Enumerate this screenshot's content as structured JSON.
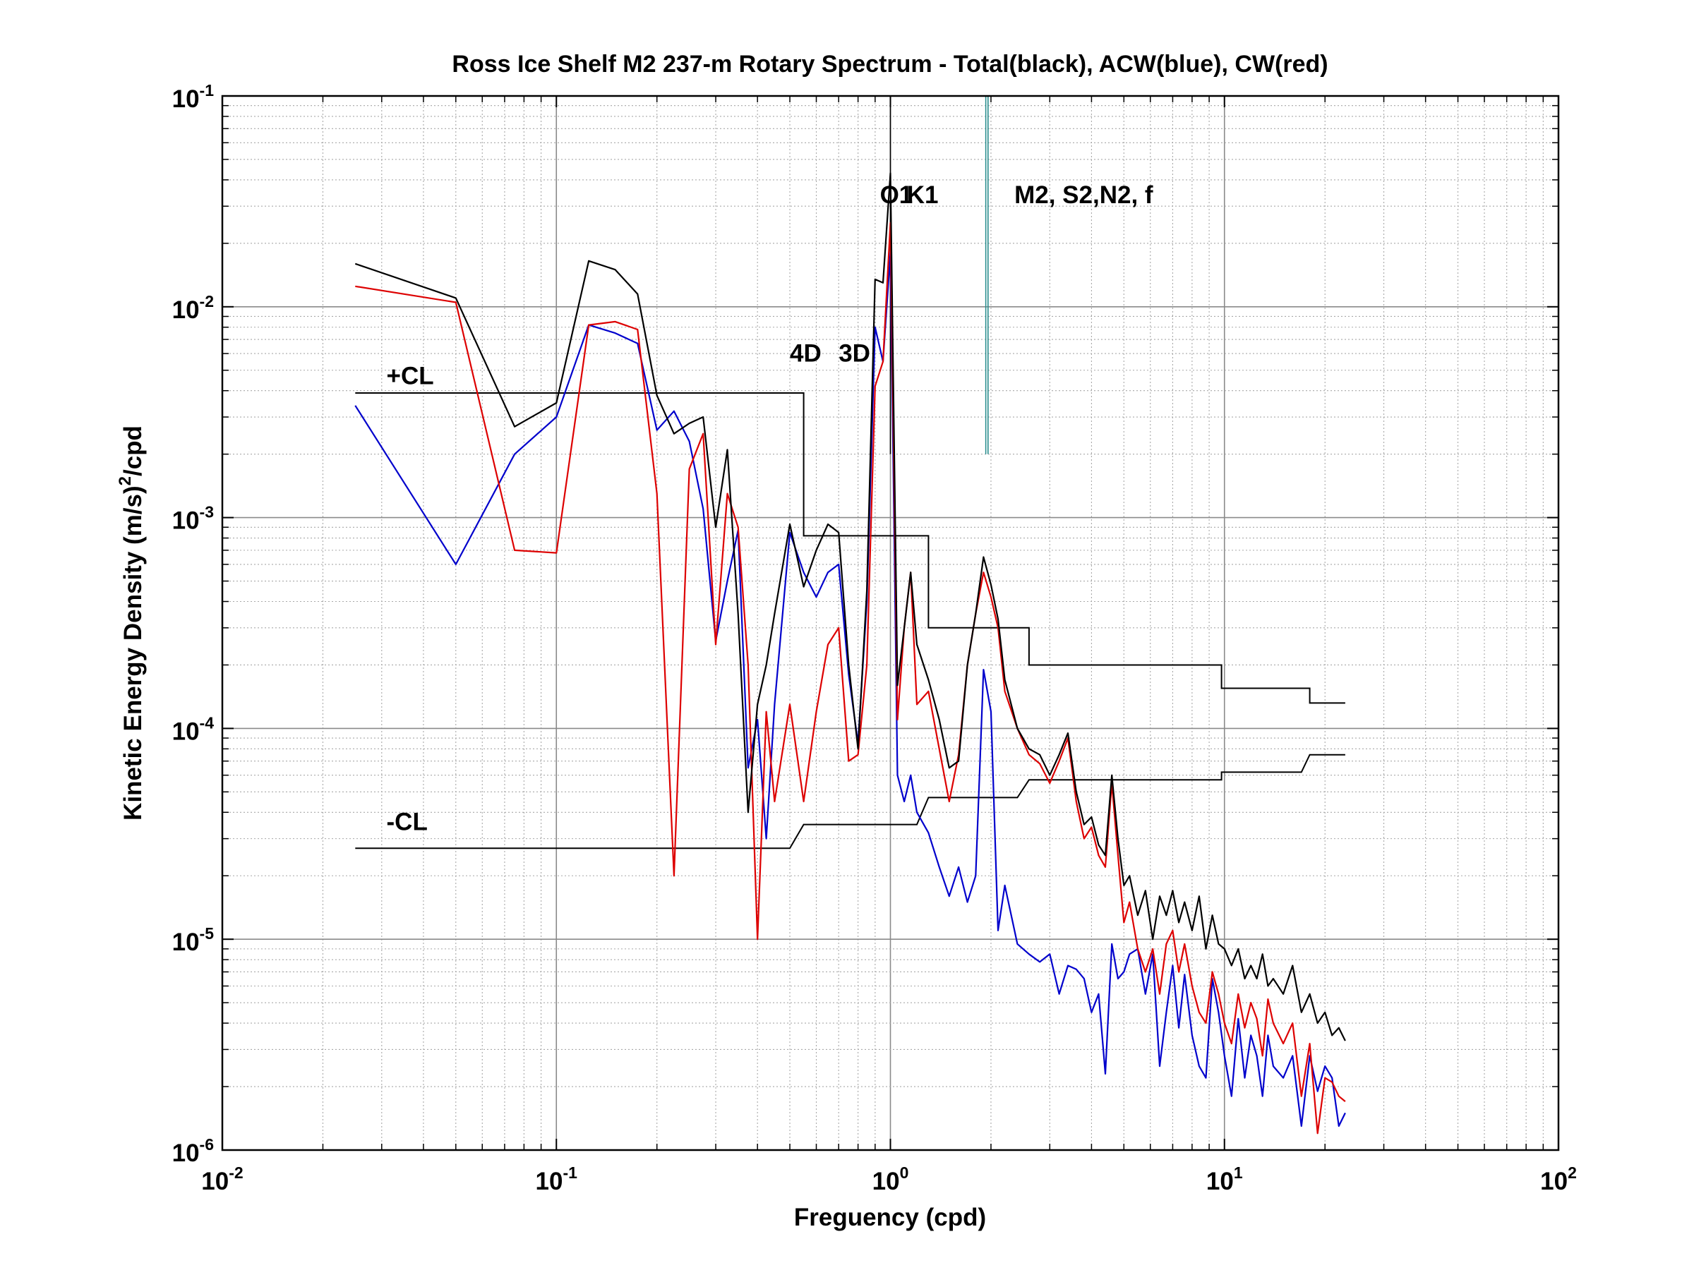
{
  "chart_data": {
    "type": "line",
    "title": "Ross Ice Shelf M2 237-m Rotary Spectrum - Total(black), ACW(blue), CW(red)",
    "xlabel": "Freguency (cpd)",
    "ylabel_parts": {
      "pre": "Kinetic Energy Density (m/s)",
      "sup": "2",
      "post": "/cpd"
    },
    "xscale": "log",
    "yscale": "log",
    "xlim": [
      0.01,
      100
    ],
    "ylim": [
      1e-06,
      0.1
    ],
    "grid": true,
    "x_ticks": [
      {
        "value": 0.01,
        "base": "10",
        "exp": "-2"
      },
      {
        "value": 0.1,
        "base": "10",
        "exp": "-1"
      },
      {
        "value": 1,
        "base": "10",
        "exp": "0"
      },
      {
        "value": 10,
        "base": "10",
        "exp": "1"
      },
      {
        "value": 100,
        "base": "10",
        "exp": "2"
      }
    ],
    "y_ticks": [
      {
        "value": 1e-06,
        "base": "10",
        "exp": "-6"
      },
      {
        "value": 1e-05,
        "base": "10",
        "exp": "-5"
      },
      {
        "value": 0.0001,
        "base": "10",
        "exp": "-4"
      },
      {
        "value": 0.001,
        "base": "10",
        "exp": "-3"
      },
      {
        "value": 0.01,
        "base": "10",
        "exp": "-2"
      },
      {
        "value": 0.1,
        "base": "10",
        "exp": "-1"
      }
    ],
    "colors": {
      "total": "#000000",
      "acw": "#0000cc",
      "cw": "#dd0000",
      "cl": "#000000",
      "tide": "#2a8f8f"
    },
    "series": [
      {
        "key": "total",
        "color": "#000000",
        "x": [
          0.025,
          0.05,
          0.075,
          0.1,
          0.125,
          0.15,
          0.175,
          0.2,
          0.225,
          0.25,
          0.275,
          0.3,
          0.325,
          0.35,
          0.375,
          0.4,
          0.425,
          0.45,
          0.5,
          0.55,
          0.6,
          0.65,
          0.7,
          0.75,
          0.8,
          0.85,
          0.9,
          0.95,
          1.0,
          1.05,
          1.1,
          1.15,
          1.2,
          1.3,
          1.4,
          1.5,
          1.6,
          1.7,
          1.8,
          1.9,
          2.0,
          2.1,
          2.2,
          2.4,
          2.6,
          2.8,
          3.0,
          3.2,
          3.4,
          3.6,
          3.8,
          4.0,
          4.2,
          4.4,
          4.6,
          4.8,
          5.0,
          5.2,
          5.5,
          5.8,
          6.1,
          6.4,
          6.7,
          7.0,
          7.3,
          7.6,
          8.0,
          8.4,
          8.8,
          9.2,
          9.6,
          10.0,
          10.5,
          11.0,
          11.5,
          12.0,
          12.5,
          13.0,
          13.5,
          14.0,
          15.0,
          16.0,
          17.0,
          18.0,
          19.0,
          20.0,
          21.0,
          22.0,
          23.0
        ],
        "y": [
          0.016,
          0.011,
          0.0027,
          0.0035,
          0.0165,
          0.015,
          0.0115,
          0.0038,
          0.0025,
          0.0028,
          0.003,
          0.0009,
          0.0021,
          0.00035,
          4e-05,
          0.00013,
          0.0002,
          0.00035,
          0.00093,
          0.00047,
          0.0007,
          0.00093,
          0.00085,
          0.0002,
          8e-05,
          0.00045,
          0.0135,
          0.013,
          0.043,
          0.00016,
          0.0003,
          0.00055,
          0.00025,
          0.00017,
          0.00011,
          6.5e-05,
          7e-05,
          0.0002,
          0.00035,
          0.00065,
          0.00048,
          0.00033,
          0.00017,
          0.0001,
          8e-05,
          7.5e-05,
          6e-05,
          7.5e-05,
          9.5e-05,
          5e-05,
          3.5e-05,
          3.8e-05,
          2.8e-05,
          2.5e-05,
          6e-05,
          3e-05,
          1.8e-05,
          2e-05,
          1.3e-05,
          1.7e-05,
          1e-05,
          1.6e-05,
          1.3e-05,
          1.7e-05,
          1.2e-05,
          1.5e-05,
          1.1e-05,
          1.6e-05,
          9e-06,
          1.3e-05,
          9.5e-06,
          9e-06,
          7.5e-06,
          9e-06,
          6.5e-06,
          7.5e-06,
          6.5e-06,
          8.5e-06,
          6e-06,
          6.5e-06,
          5.5e-06,
          7.5e-06,
          4.5e-06,
          5.5e-06,
          4e-06,
          4.5e-06,
          3.5e-06,
          3.8e-06,
          3.3e-06
        ]
      },
      {
        "key": "acw",
        "color": "#0000cc",
        "x": [
          0.025,
          0.05,
          0.075,
          0.1,
          0.125,
          0.15,
          0.175,
          0.2,
          0.225,
          0.25,
          0.275,
          0.3,
          0.325,
          0.35,
          0.375,
          0.4,
          0.425,
          0.45,
          0.5,
          0.55,
          0.6,
          0.65,
          0.7,
          0.75,
          0.8,
          0.85,
          0.9,
          0.95,
          1.0,
          1.05,
          1.1,
          1.15,
          1.2,
          1.3,
          1.4,
          1.5,
          1.6,
          1.7,
          1.8,
          1.9,
          2.0,
          2.1,
          2.2,
          2.4,
          2.6,
          2.8,
          3.0,
          3.2,
          3.4,
          3.6,
          3.8,
          4.0,
          4.2,
          4.4,
          4.6,
          4.8,
          5.0,
          5.2,
          5.5,
          5.8,
          6.1,
          6.4,
          6.7,
          7.0,
          7.3,
          7.6,
          8.0,
          8.4,
          8.8,
          9.2,
          9.6,
          10.0,
          10.5,
          11.0,
          11.5,
          12.0,
          12.5,
          13.0,
          13.5,
          14.0,
          15.0,
          16.0,
          17.0,
          18.0,
          19.0,
          20.0,
          21.0,
          22.0,
          23.0
        ],
        "y": [
          0.0034,
          0.0006,
          0.002,
          0.003,
          0.0082,
          0.0075,
          0.0067,
          0.0026,
          0.0032,
          0.0023,
          0.0011,
          0.00026,
          0.0005,
          0.00087,
          6.5e-05,
          0.00011,
          3e-05,
          0.00013,
          0.00085,
          0.00055,
          0.00042,
          0.00055,
          0.0006,
          0.00018,
          8.5e-05,
          0.0004,
          0.008,
          0.0055,
          0.018,
          6e-05,
          4.5e-05,
          6e-05,
          4e-05,
          3.2e-05,
          2.2e-05,
          1.6e-05,
          2.2e-05,
          1.5e-05,
          2e-05,
          0.00019,
          0.00012,
          1.1e-05,
          1.8e-05,
          9.5e-06,
          8.5e-06,
          7.8e-06,
          8.5e-06,
          5.5e-06,
          7.5e-06,
          7.2e-06,
          6.5e-06,
          4.5e-06,
          5.5e-06,
          2.3e-06,
          9.5e-06,
          6.5e-06,
          7e-06,
          8.5e-06,
          9e-06,
          5.5e-06,
          8.5e-06,
          2.5e-06,
          4.5e-06,
          7.5e-06,
          3.8e-06,
          6.8e-06,
          3.5e-06,
          2.5e-06,
          2.2e-06,
          6.5e-06,
          4.5e-06,
          2.8e-06,
          1.8e-06,
          4.2e-06,
          2.2e-06,
          3.5e-06,
          2.8e-06,
          1.8e-06,
          3.5e-06,
          2.5e-06,
          2.2e-06,
          2.8e-06,
          1.3e-06,
          2.8e-06,
          1.9e-06,
          2.5e-06,
          2.2e-06,
          1.3e-06,
          1.5e-06
        ]
      },
      {
        "key": "cw",
        "color": "#dd0000",
        "x": [
          0.025,
          0.05,
          0.075,
          0.1,
          0.125,
          0.15,
          0.175,
          0.2,
          0.225,
          0.25,
          0.275,
          0.3,
          0.325,
          0.35,
          0.375,
          0.4,
          0.425,
          0.45,
          0.5,
          0.55,
          0.6,
          0.65,
          0.7,
          0.75,
          0.8,
          0.85,
          0.9,
          0.95,
          1.0,
          1.05,
          1.1,
          1.15,
          1.2,
          1.3,
          1.4,
          1.5,
          1.6,
          1.7,
          1.8,
          1.9,
          2.0,
          2.1,
          2.2,
          2.4,
          2.6,
          2.8,
          3.0,
          3.2,
          3.4,
          3.6,
          3.8,
          4.0,
          4.2,
          4.4,
          4.6,
          4.8,
          5.0,
          5.2,
          5.5,
          5.8,
          6.1,
          6.4,
          6.7,
          7.0,
          7.3,
          7.6,
          8.0,
          8.4,
          8.8,
          9.2,
          9.6,
          10.0,
          10.5,
          11.0,
          11.5,
          12.0,
          12.5,
          13.0,
          13.5,
          14.0,
          15.0,
          16.0,
          17.0,
          18.0,
          19.0,
          20.0,
          21.0,
          22.0,
          23.0
        ],
        "y": [
          0.0125,
          0.0105,
          0.0007,
          0.00068,
          0.0082,
          0.0085,
          0.0078,
          0.0013,
          2e-05,
          0.0017,
          0.0025,
          0.00025,
          0.0013,
          0.0009,
          0.0002,
          1e-05,
          0.00012,
          4.5e-05,
          0.00013,
          4.5e-05,
          0.00012,
          0.00025,
          0.0003,
          7e-05,
          7.5e-05,
          0.0002,
          0.0042,
          0.0055,
          0.025,
          0.00011,
          0.0003,
          0.00055,
          0.00013,
          0.00015,
          8e-05,
          4.5e-05,
          7.5e-05,
          0.0002,
          0.00035,
          0.00055,
          0.00042,
          0.0003,
          0.00015,
          0.0001,
          7.5e-05,
          6.8e-05,
          5.5e-05,
          7e-05,
          9e-05,
          4.5e-05,
          3e-05,
          3.4e-05,
          2.5e-05,
          2.2e-05,
          5.5e-05,
          2.5e-05,
          1.2e-05,
          1.5e-05,
          9e-06,
          7e-06,
          9e-06,
          5.5e-06,
          9.5e-06,
          1.1e-05,
          7e-06,
          9.5e-06,
          6e-06,
          4.5e-06,
          4e-06,
          7e-06,
          5.5e-06,
          4e-06,
          3.2e-06,
          5.5e-06,
          3.8e-06,
          5e-06,
          4.2e-06,
          2.8e-06,
          5.2e-06,
          4e-06,
          3.2e-06,
          4e-06,
          1.8e-06,
          3.2e-06,
          1.2e-06,
          2.2e-06,
          2.1e-06,
          1.8e-06,
          1.7e-06
        ]
      }
    ],
    "confidence_limits": [
      {
        "label": "+CL",
        "x": [
          0.025,
          0.5,
          0.5,
          0.55,
          0.55,
          1.2,
          1.2,
          1.3,
          1.3,
          2.4,
          2.4,
          2.6,
          2.6,
          9.8,
          9.8,
          17,
          17,
          18,
          18,
          23
        ],
        "y": [
          0.0039,
          0.0039,
          0.0039,
          0.0039,
          0.00082,
          0.00082,
          0.00082,
          0.00082,
          0.0003,
          0.0003,
          0.0003,
          0.0003,
          0.0002,
          0.0002,
          0.000155,
          0.000155,
          0.000155,
          0.000155,
          0.000132,
          0.000132
        ]
      },
      {
        "label": "-CL",
        "x": [
          0.025,
          0.5,
          0.5,
          0.55,
          0.55,
          1.2,
          1.2,
          1.3,
          1.3,
          2.4,
          2.4,
          2.6,
          2.6,
          9.8,
          9.8,
          17,
          17,
          18,
          18,
          23
        ],
        "y": [
          2.7e-05,
          2.7e-05,
          2.7e-05,
          3.5e-05,
          3.5e-05,
          3.5e-05,
          3.5e-05,
          4.7e-05,
          4.7e-05,
          4.7e-05,
          4.7e-05,
          5.7e-05,
          5.7e-05,
          5.7e-05,
          6.2e-05,
          6.2e-05,
          6.2e-05,
          7.5e-05,
          7.5e-05,
          7.5e-05
        ]
      }
    ],
    "markers": [
      {
        "x": 1.0,
        "y0": 0.002,
        "y1": 0.1,
        "color": "#000000"
      },
      {
        "x": 1.93,
        "y0": 0.002,
        "y1": 0.1,
        "color": "#2a8f8f"
      },
      {
        "x": 1.96,
        "y0": 0.002,
        "y1": 0.1,
        "color": "#2a8f8f"
      }
    ],
    "annotations": [
      {
        "text": "O1",
        "x": 0.93,
        "y": 0.031
      },
      {
        "text": "K1",
        "x": 1.12,
        "y": 0.031
      },
      {
        "text": "M2, S2,N2, f",
        "x": 2.35,
        "y": 0.031
      },
      {
        "text": "4D",
        "x": 0.5,
        "y": 0.0055
      },
      {
        "text": "3D",
        "x": 0.7,
        "y": 0.0055
      },
      {
        "text": "+CL",
        "x": 0.031,
        "y": 0.0043
      },
      {
        "text": "-CL",
        "x": 0.031,
        "y": 3.3e-05
      }
    ]
  }
}
